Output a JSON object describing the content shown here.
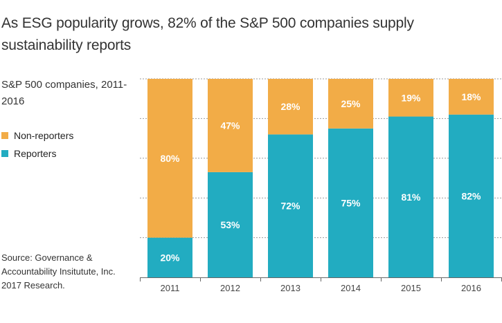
{
  "title": "As ESG popularity grows, 82% of the S&P 500 companies supply sustainability reports",
  "subtitle": "S&P 500 companies, 2011-2016",
  "source": "Source: Governance & Accountability Insitutute, Inc. 2017 Research.",
  "legend": [
    {
      "label": "Non-reporters",
      "color": "#F2AC47"
    },
    {
      "label": "Reporters",
      "color": "#22ACC1"
    }
  ],
  "chart_data": {
    "type": "bar",
    "stacked": true,
    "title": "As ESG popularity grows, 82% of the S&P 500 companies supply sustainability reports",
    "subtitle": "S&P 500 companies, 2011-2016",
    "xlabel": "",
    "ylabel": "",
    "ylim": [
      0,
      100
    ],
    "grid": true,
    "legend_position": "left",
    "categories": [
      "2011",
      "2012",
      "2013",
      "2014",
      "2015",
      "2016"
    ],
    "series": [
      {
        "name": "Reporters",
        "color": "#22ACC1",
        "values": [
          20,
          53,
          72,
          75,
          81,
          82
        ],
        "labels": [
          "20%",
          "53%",
          "72%",
          "75%",
          "81%",
          "82%"
        ]
      },
      {
        "name": "Non-reporters",
        "color": "#F2AC47",
        "values": [
          80,
          47,
          28,
          25,
          19,
          18
        ],
        "labels": [
          "80%",
          "47%",
          "28%",
          "25%",
          "19%",
          "18%"
        ]
      }
    ]
  }
}
